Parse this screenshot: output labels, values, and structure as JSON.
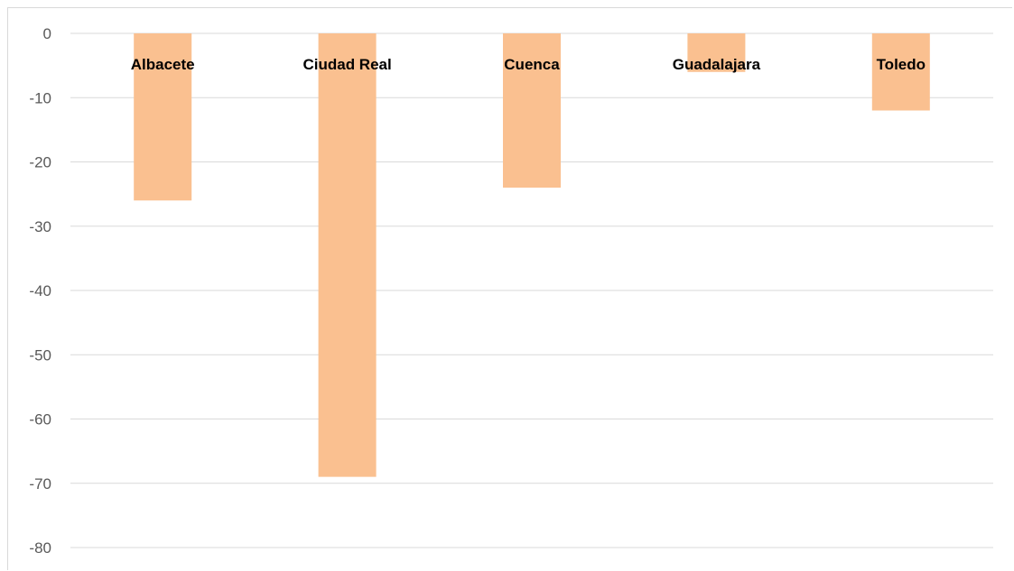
{
  "chart_data": {
    "type": "bar",
    "categories": [
      "Albacete",
      "Ciudad Real",
      "Cuenca",
      "Guadalajara",
      "Toledo"
    ],
    "values": [
      -26,
      -69,
      -24,
      -6,
      -12
    ],
    "ylim": [
      -80,
      0
    ],
    "yticks": [
      0,
      -10,
      -20,
      -30,
      -40,
      -50,
      -60,
      -70,
      -80
    ],
    "ytick_labels": [
      "0",
      "-10",
      "-20",
      "-30",
      "-40",
      "-50",
      "-60",
      "-70",
      "-80"
    ],
    "grid": true,
    "legend": "none",
    "bar_color": "#FAC090",
    "gridline_color": "#D9D9D9",
    "tick_label_color": "#595959",
    "category_label_color": "#000000"
  }
}
